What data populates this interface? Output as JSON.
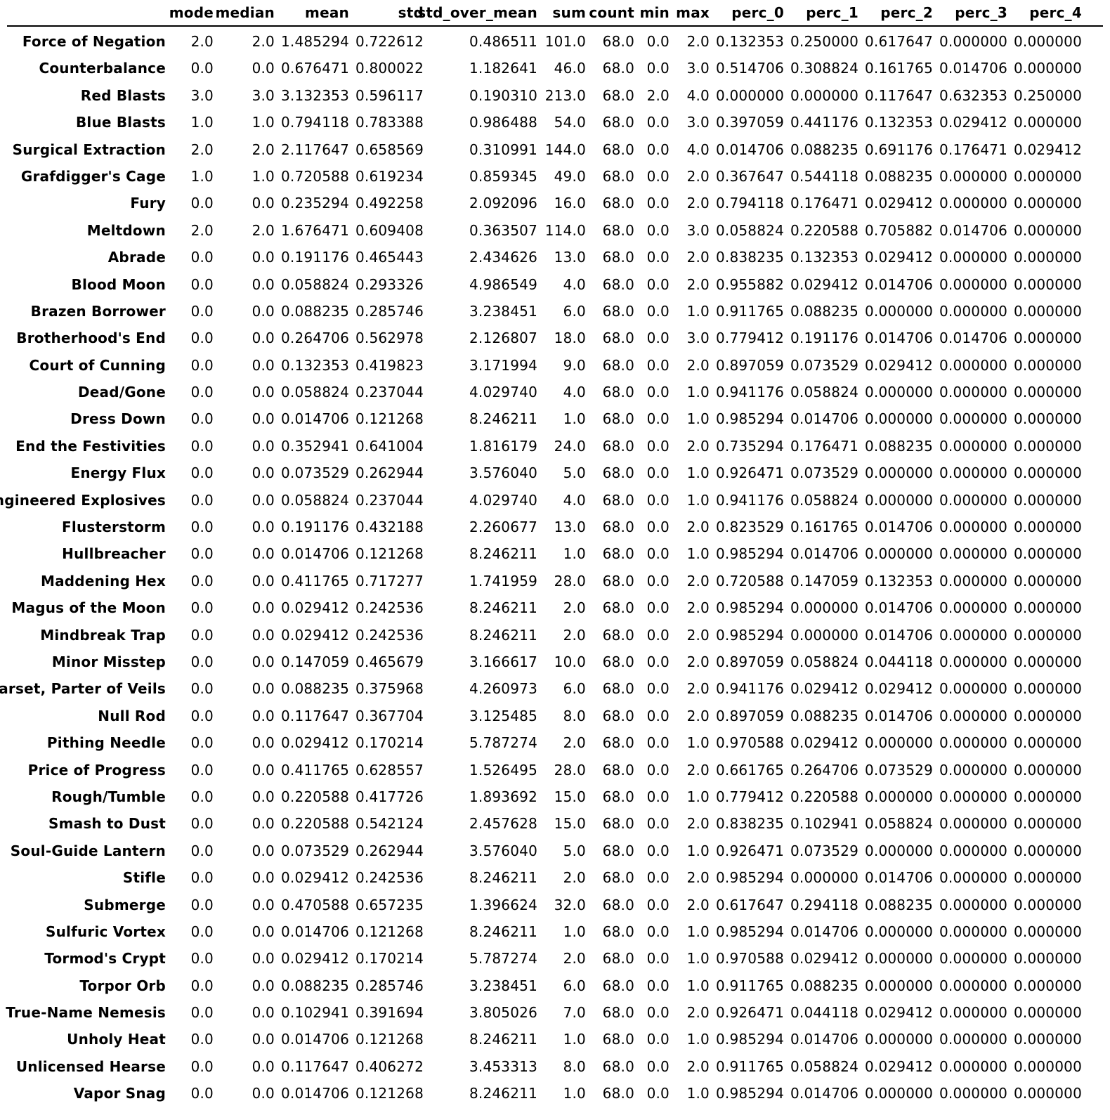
{
  "table": {
    "columns": [
      "mode",
      "median",
      "mean",
      "std",
      "std_over_mean",
      "sum",
      "count",
      "min",
      "max",
      "perc_0",
      "perc_1",
      "perc_2",
      "perc_3",
      "perc_4"
    ],
    "rows": [
      {
        "label": "Force of Negation",
        "values": [
          "2.0",
          "2.0",
          "1.485294",
          "0.722612",
          "0.486511",
          "101.0",
          "68.0",
          "0.0",
          "2.0",
          "0.132353",
          "0.250000",
          "0.617647",
          "0.000000",
          "0.000000"
        ]
      },
      {
        "label": "Counterbalance",
        "values": [
          "0.0",
          "0.0",
          "0.676471",
          "0.800022",
          "1.182641",
          "46.0",
          "68.0",
          "0.0",
          "3.0",
          "0.514706",
          "0.308824",
          "0.161765",
          "0.014706",
          "0.000000"
        ]
      },
      {
        "label": "Red Blasts",
        "values": [
          "3.0",
          "3.0",
          "3.132353",
          "0.596117",
          "0.190310",
          "213.0",
          "68.0",
          "2.0",
          "4.0",
          "0.000000",
          "0.000000",
          "0.117647",
          "0.632353",
          "0.250000"
        ]
      },
      {
        "label": "Blue Blasts",
        "values": [
          "1.0",
          "1.0",
          "0.794118",
          "0.783388",
          "0.986488",
          "54.0",
          "68.0",
          "0.0",
          "3.0",
          "0.397059",
          "0.441176",
          "0.132353",
          "0.029412",
          "0.000000"
        ]
      },
      {
        "label": "Surgical Extraction",
        "values": [
          "2.0",
          "2.0",
          "2.117647",
          "0.658569",
          "0.310991",
          "144.0",
          "68.0",
          "0.0",
          "4.0",
          "0.014706",
          "0.088235",
          "0.691176",
          "0.176471",
          "0.029412"
        ]
      },
      {
        "label": "Grafdigger's Cage",
        "values": [
          "1.0",
          "1.0",
          "0.720588",
          "0.619234",
          "0.859345",
          "49.0",
          "68.0",
          "0.0",
          "2.0",
          "0.367647",
          "0.544118",
          "0.088235",
          "0.000000",
          "0.000000"
        ]
      },
      {
        "label": "Fury",
        "values": [
          "0.0",
          "0.0",
          "0.235294",
          "0.492258",
          "2.092096",
          "16.0",
          "68.0",
          "0.0",
          "2.0",
          "0.794118",
          "0.176471",
          "0.029412",
          "0.000000",
          "0.000000"
        ]
      },
      {
        "label": "Meltdown",
        "values": [
          "2.0",
          "2.0",
          "1.676471",
          "0.609408",
          "0.363507",
          "114.0",
          "68.0",
          "0.0",
          "3.0",
          "0.058824",
          "0.220588",
          "0.705882",
          "0.014706",
          "0.000000"
        ]
      },
      {
        "label": "Abrade",
        "values": [
          "0.0",
          "0.0",
          "0.191176",
          "0.465443",
          "2.434626",
          "13.0",
          "68.0",
          "0.0",
          "2.0",
          "0.838235",
          "0.132353",
          "0.029412",
          "0.000000",
          "0.000000"
        ]
      },
      {
        "label": "Blood Moon",
        "values": [
          "0.0",
          "0.0",
          "0.058824",
          "0.293326",
          "4.986549",
          "4.0",
          "68.0",
          "0.0",
          "2.0",
          "0.955882",
          "0.029412",
          "0.014706",
          "0.000000",
          "0.000000"
        ]
      },
      {
        "label": "Brazen Borrower",
        "values": [
          "0.0",
          "0.0",
          "0.088235",
          "0.285746",
          "3.238451",
          "6.0",
          "68.0",
          "0.0",
          "1.0",
          "0.911765",
          "0.088235",
          "0.000000",
          "0.000000",
          "0.000000"
        ]
      },
      {
        "label": "Brotherhood's End",
        "values": [
          "0.0",
          "0.0",
          "0.264706",
          "0.562978",
          "2.126807",
          "18.0",
          "68.0",
          "0.0",
          "3.0",
          "0.779412",
          "0.191176",
          "0.014706",
          "0.014706",
          "0.000000"
        ]
      },
      {
        "label": "Court of Cunning",
        "values": [
          "0.0",
          "0.0",
          "0.132353",
          "0.419823",
          "3.171994",
          "9.0",
          "68.0",
          "0.0",
          "2.0",
          "0.897059",
          "0.073529",
          "0.029412",
          "0.000000",
          "0.000000"
        ]
      },
      {
        "label": "Dead/Gone",
        "values": [
          "0.0",
          "0.0",
          "0.058824",
          "0.237044",
          "4.029740",
          "4.0",
          "68.0",
          "0.0",
          "1.0",
          "0.941176",
          "0.058824",
          "0.000000",
          "0.000000",
          "0.000000"
        ]
      },
      {
        "label": "Dress Down",
        "values": [
          "0.0",
          "0.0",
          "0.014706",
          "0.121268",
          "8.246211",
          "1.0",
          "68.0",
          "0.0",
          "1.0",
          "0.985294",
          "0.014706",
          "0.000000",
          "0.000000",
          "0.000000"
        ]
      },
      {
        "label": "End the Festivities",
        "values": [
          "0.0",
          "0.0",
          "0.352941",
          "0.641004",
          "1.816179",
          "24.0",
          "68.0",
          "0.0",
          "2.0",
          "0.735294",
          "0.176471",
          "0.088235",
          "0.000000",
          "0.000000"
        ]
      },
      {
        "label": "Energy Flux",
        "values": [
          "0.0",
          "0.0",
          "0.073529",
          "0.262944",
          "3.576040",
          "5.0",
          "68.0",
          "0.0",
          "1.0",
          "0.926471",
          "0.073529",
          "0.000000",
          "0.000000",
          "0.000000"
        ]
      },
      {
        "label": "Engineered Explosives",
        "values": [
          "0.0",
          "0.0",
          "0.058824",
          "0.237044",
          "4.029740",
          "4.0",
          "68.0",
          "0.0",
          "1.0",
          "0.941176",
          "0.058824",
          "0.000000",
          "0.000000",
          "0.000000"
        ]
      },
      {
        "label": "Flusterstorm",
        "values": [
          "0.0",
          "0.0",
          "0.191176",
          "0.432188",
          "2.260677",
          "13.0",
          "68.0",
          "0.0",
          "2.0",
          "0.823529",
          "0.161765",
          "0.014706",
          "0.000000",
          "0.000000"
        ]
      },
      {
        "label": "Hullbreacher",
        "values": [
          "0.0",
          "0.0",
          "0.014706",
          "0.121268",
          "8.246211",
          "1.0",
          "68.0",
          "0.0",
          "1.0",
          "0.985294",
          "0.014706",
          "0.000000",
          "0.000000",
          "0.000000"
        ]
      },
      {
        "label": "Maddening Hex",
        "values": [
          "0.0",
          "0.0",
          "0.411765",
          "0.717277",
          "1.741959",
          "28.0",
          "68.0",
          "0.0",
          "2.0",
          "0.720588",
          "0.147059",
          "0.132353",
          "0.000000",
          "0.000000"
        ]
      },
      {
        "label": "Magus of the Moon",
        "values": [
          "0.0",
          "0.0",
          "0.029412",
          "0.242536",
          "8.246211",
          "2.0",
          "68.0",
          "0.0",
          "2.0",
          "0.985294",
          "0.000000",
          "0.014706",
          "0.000000",
          "0.000000"
        ]
      },
      {
        "label": "Mindbreak Trap",
        "values": [
          "0.0",
          "0.0",
          "0.029412",
          "0.242536",
          "8.246211",
          "2.0",
          "68.0",
          "0.0",
          "2.0",
          "0.985294",
          "0.000000",
          "0.014706",
          "0.000000",
          "0.000000"
        ]
      },
      {
        "label": "Minor Misstep",
        "values": [
          "0.0",
          "0.0",
          "0.147059",
          "0.465679",
          "3.166617",
          "10.0",
          "68.0",
          "0.0",
          "2.0",
          "0.897059",
          "0.058824",
          "0.044118",
          "0.000000",
          "0.000000"
        ]
      },
      {
        "label": "Narset, Parter of Veils",
        "values": [
          "0.0",
          "0.0",
          "0.088235",
          "0.375968",
          "4.260973",
          "6.0",
          "68.0",
          "0.0",
          "2.0",
          "0.941176",
          "0.029412",
          "0.029412",
          "0.000000",
          "0.000000"
        ]
      },
      {
        "label": "Null Rod",
        "values": [
          "0.0",
          "0.0",
          "0.117647",
          "0.367704",
          "3.125485",
          "8.0",
          "68.0",
          "0.0",
          "2.0",
          "0.897059",
          "0.088235",
          "0.014706",
          "0.000000",
          "0.000000"
        ]
      },
      {
        "label": "Pithing Needle",
        "values": [
          "0.0",
          "0.0",
          "0.029412",
          "0.170214",
          "5.787274",
          "2.0",
          "68.0",
          "0.0",
          "1.0",
          "0.970588",
          "0.029412",
          "0.000000",
          "0.000000",
          "0.000000"
        ]
      },
      {
        "label": "Price of Progress",
        "values": [
          "0.0",
          "0.0",
          "0.411765",
          "0.628557",
          "1.526495",
          "28.0",
          "68.0",
          "0.0",
          "2.0",
          "0.661765",
          "0.264706",
          "0.073529",
          "0.000000",
          "0.000000"
        ]
      },
      {
        "label": "Rough/Tumble",
        "values": [
          "0.0",
          "0.0",
          "0.220588",
          "0.417726",
          "1.893692",
          "15.0",
          "68.0",
          "0.0",
          "1.0",
          "0.779412",
          "0.220588",
          "0.000000",
          "0.000000",
          "0.000000"
        ]
      },
      {
        "label": "Smash to Dust",
        "values": [
          "0.0",
          "0.0",
          "0.220588",
          "0.542124",
          "2.457628",
          "15.0",
          "68.0",
          "0.0",
          "2.0",
          "0.838235",
          "0.102941",
          "0.058824",
          "0.000000",
          "0.000000"
        ]
      },
      {
        "label": "Soul-Guide Lantern",
        "values": [
          "0.0",
          "0.0",
          "0.073529",
          "0.262944",
          "3.576040",
          "5.0",
          "68.0",
          "0.0",
          "1.0",
          "0.926471",
          "0.073529",
          "0.000000",
          "0.000000",
          "0.000000"
        ]
      },
      {
        "label": "Stifle",
        "values": [
          "0.0",
          "0.0",
          "0.029412",
          "0.242536",
          "8.246211",
          "2.0",
          "68.0",
          "0.0",
          "2.0",
          "0.985294",
          "0.000000",
          "0.014706",
          "0.000000",
          "0.000000"
        ]
      },
      {
        "label": "Submerge",
        "values": [
          "0.0",
          "0.0",
          "0.470588",
          "0.657235",
          "1.396624",
          "32.0",
          "68.0",
          "0.0",
          "2.0",
          "0.617647",
          "0.294118",
          "0.088235",
          "0.000000",
          "0.000000"
        ]
      },
      {
        "label": "Sulfuric Vortex",
        "values": [
          "0.0",
          "0.0",
          "0.014706",
          "0.121268",
          "8.246211",
          "1.0",
          "68.0",
          "0.0",
          "1.0",
          "0.985294",
          "0.014706",
          "0.000000",
          "0.000000",
          "0.000000"
        ]
      },
      {
        "label": "Tormod's Crypt",
        "values": [
          "0.0",
          "0.0",
          "0.029412",
          "0.170214",
          "5.787274",
          "2.0",
          "68.0",
          "0.0",
          "1.0",
          "0.970588",
          "0.029412",
          "0.000000",
          "0.000000",
          "0.000000"
        ]
      },
      {
        "label": "Torpor Orb",
        "values": [
          "0.0",
          "0.0",
          "0.088235",
          "0.285746",
          "3.238451",
          "6.0",
          "68.0",
          "0.0",
          "1.0",
          "0.911765",
          "0.088235",
          "0.000000",
          "0.000000",
          "0.000000"
        ]
      },
      {
        "label": "True-Name Nemesis",
        "values": [
          "0.0",
          "0.0",
          "0.102941",
          "0.391694",
          "3.805026",
          "7.0",
          "68.0",
          "0.0",
          "2.0",
          "0.926471",
          "0.044118",
          "0.029412",
          "0.000000",
          "0.000000"
        ]
      },
      {
        "label": "Unholy Heat",
        "values": [
          "0.0",
          "0.0",
          "0.014706",
          "0.121268",
          "8.246211",
          "1.0",
          "68.0",
          "0.0",
          "1.0",
          "0.985294",
          "0.014706",
          "0.000000",
          "0.000000",
          "0.000000"
        ]
      },
      {
        "label": "Unlicensed Hearse",
        "values": [
          "0.0",
          "0.0",
          "0.117647",
          "0.406272",
          "3.453313",
          "8.0",
          "68.0",
          "0.0",
          "2.0",
          "0.911765",
          "0.058824",
          "0.029412",
          "0.000000",
          "0.000000"
        ]
      },
      {
        "label": "Vapor Snag",
        "values": [
          "0.0",
          "0.0",
          "0.014706",
          "0.121268",
          "8.246211",
          "1.0",
          "68.0",
          "0.0",
          "1.0",
          "0.985294",
          "0.014706",
          "0.000000",
          "0.000000",
          "0.000000"
        ]
      }
    ]
  }
}
